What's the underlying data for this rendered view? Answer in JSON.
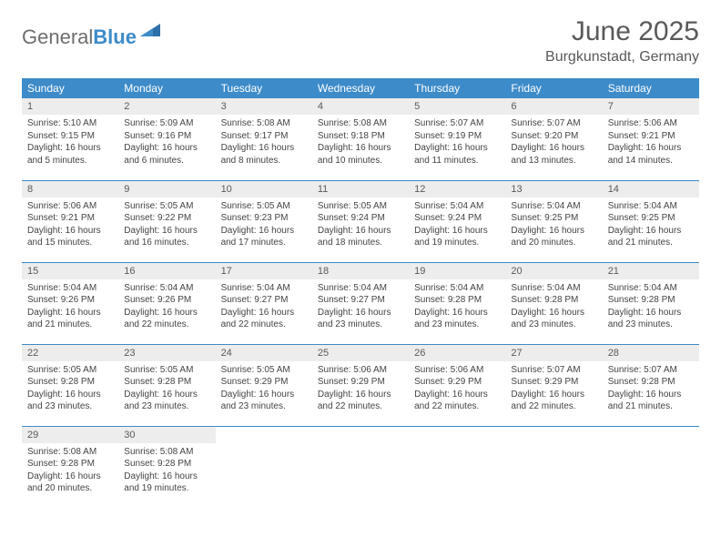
{
  "brand": {
    "part1": "General",
    "part2": "Blue"
  },
  "title": "June 2025",
  "location": "Burgkunstadt, Germany",
  "colors": {
    "header_bg": "#3d8bc9",
    "header_text": "#ffffff",
    "daynum_bg": "#ededed",
    "text": "#595959",
    "rule": "#3d8bc9"
  },
  "weekdays": [
    "Sunday",
    "Monday",
    "Tuesday",
    "Wednesday",
    "Thursday",
    "Friday",
    "Saturday"
  ],
  "weeks": [
    [
      {
        "n": "1",
        "sr": "Sunrise: 5:10 AM",
        "ss": "Sunset: 9:15 PM",
        "dl": "Daylight: 16 hours and 5 minutes."
      },
      {
        "n": "2",
        "sr": "Sunrise: 5:09 AM",
        "ss": "Sunset: 9:16 PM",
        "dl": "Daylight: 16 hours and 6 minutes."
      },
      {
        "n": "3",
        "sr": "Sunrise: 5:08 AM",
        "ss": "Sunset: 9:17 PM",
        "dl": "Daylight: 16 hours and 8 minutes."
      },
      {
        "n": "4",
        "sr": "Sunrise: 5:08 AM",
        "ss": "Sunset: 9:18 PM",
        "dl": "Daylight: 16 hours and 10 minutes."
      },
      {
        "n": "5",
        "sr": "Sunrise: 5:07 AM",
        "ss": "Sunset: 9:19 PM",
        "dl": "Daylight: 16 hours and 11 minutes."
      },
      {
        "n": "6",
        "sr": "Sunrise: 5:07 AM",
        "ss": "Sunset: 9:20 PM",
        "dl": "Daylight: 16 hours and 13 minutes."
      },
      {
        "n": "7",
        "sr": "Sunrise: 5:06 AM",
        "ss": "Sunset: 9:21 PM",
        "dl": "Daylight: 16 hours and 14 minutes."
      }
    ],
    [
      {
        "n": "8",
        "sr": "Sunrise: 5:06 AM",
        "ss": "Sunset: 9:21 PM",
        "dl": "Daylight: 16 hours and 15 minutes."
      },
      {
        "n": "9",
        "sr": "Sunrise: 5:05 AM",
        "ss": "Sunset: 9:22 PM",
        "dl": "Daylight: 16 hours and 16 minutes."
      },
      {
        "n": "10",
        "sr": "Sunrise: 5:05 AM",
        "ss": "Sunset: 9:23 PM",
        "dl": "Daylight: 16 hours and 17 minutes."
      },
      {
        "n": "11",
        "sr": "Sunrise: 5:05 AM",
        "ss": "Sunset: 9:24 PM",
        "dl": "Daylight: 16 hours and 18 minutes."
      },
      {
        "n": "12",
        "sr": "Sunrise: 5:04 AM",
        "ss": "Sunset: 9:24 PM",
        "dl": "Daylight: 16 hours and 19 minutes."
      },
      {
        "n": "13",
        "sr": "Sunrise: 5:04 AM",
        "ss": "Sunset: 9:25 PM",
        "dl": "Daylight: 16 hours and 20 minutes."
      },
      {
        "n": "14",
        "sr": "Sunrise: 5:04 AM",
        "ss": "Sunset: 9:25 PM",
        "dl": "Daylight: 16 hours and 21 minutes."
      }
    ],
    [
      {
        "n": "15",
        "sr": "Sunrise: 5:04 AM",
        "ss": "Sunset: 9:26 PM",
        "dl": "Daylight: 16 hours and 21 minutes."
      },
      {
        "n": "16",
        "sr": "Sunrise: 5:04 AM",
        "ss": "Sunset: 9:26 PM",
        "dl": "Daylight: 16 hours and 22 minutes."
      },
      {
        "n": "17",
        "sr": "Sunrise: 5:04 AM",
        "ss": "Sunset: 9:27 PM",
        "dl": "Daylight: 16 hours and 22 minutes."
      },
      {
        "n": "18",
        "sr": "Sunrise: 5:04 AM",
        "ss": "Sunset: 9:27 PM",
        "dl": "Daylight: 16 hours and 23 minutes."
      },
      {
        "n": "19",
        "sr": "Sunrise: 5:04 AM",
        "ss": "Sunset: 9:28 PM",
        "dl": "Daylight: 16 hours and 23 minutes."
      },
      {
        "n": "20",
        "sr": "Sunrise: 5:04 AM",
        "ss": "Sunset: 9:28 PM",
        "dl": "Daylight: 16 hours and 23 minutes."
      },
      {
        "n": "21",
        "sr": "Sunrise: 5:04 AM",
        "ss": "Sunset: 9:28 PM",
        "dl": "Daylight: 16 hours and 23 minutes."
      }
    ],
    [
      {
        "n": "22",
        "sr": "Sunrise: 5:05 AM",
        "ss": "Sunset: 9:28 PM",
        "dl": "Daylight: 16 hours and 23 minutes."
      },
      {
        "n": "23",
        "sr": "Sunrise: 5:05 AM",
        "ss": "Sunset: 9:28 PM",
        "dl": "Daylight: 16 hours and 23 minutes."
      },
      {
        "n": "24",
        "sr": "Sunrise: 5:05 AM",
        "ss": "Sunset: 9:29 PM",
        "dl": "Daylight: 16 hours and 23 minutes."
      },
      {
        "n": "25",
        "sr": "Sunrise: 5:06 AM",
        "ss": "Sunset: 9:29 PM",
        "dl": "Daylight: 16 hours and 22 minutes."
      },
      {
        "n": "26",
        "sr": "Sunrise: 5:06 AM",
        "ss": "Sunset: 9:29 PM",
        "dl": "Daylight: 16 hours and 22 minutes."
      },
      {
        "n": "27",
        "sr": "Sunrise: 5:07 AM",
        "ss": "Sunset: 9:29 PM",
        "dl": "Daylight: 16 hours and 22 minutes."
      },
      {
        "n": "28",
        "sr": "Sunrise: 5:07 AM",
        "ss": "Sunset: 9:28 PM",
        "dl": "Daylight: 16 hours and 21 minutes."
      }
    ],
    [
      {
        "n": "29",
        "sr": "Sunrise: 5:08 AM",
        "ss": "Sunset: 9:28 PM",
        "dl": "Daylight: 16 hours and 20 minutes."
      },
      {
        "n": "30",
        "sr": "Sunrise: 5:08 AM",
        "ss": "Sunset: 9:28 PM",
        "dl": "Daylight: 16 hours and 19 minutes."
      },
      null,
      null,
      null,
      null,
      null
    ]
  ]
}
